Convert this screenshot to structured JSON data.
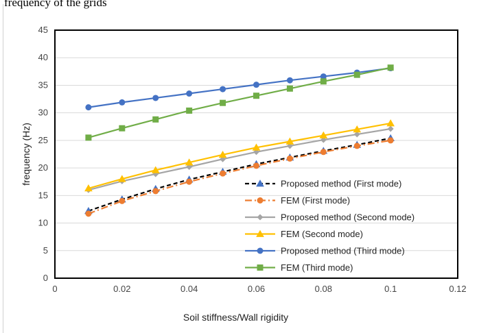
{
  "caption": "frequency of the grids",
  "chart_data": {
    "type": "line",
    "title": "",
    "xlabel": "Soil stiffness/Wall rigidity",
    "ylabel": "frequency (Hz)",
    "xlim": [
      0,
      0.12
    ],
    "ylim": [
      0,
      45
    ],
    "x_ticks": [
      "0",
      "0.02",
      "0.04",
      "0.06",
      "0.08",
      "0.1",
      "0.12"
    ],
    "y_ticks": [
      "0",
      "5",
      "10",
      "15",
      "20",
      "25",
      "30",
      "35",
      "40",
      "45"
    ],
    "grid": "horizontal",
    "legend_position": "inside-bottom-right",
    "x": [
      0.01,
      0.02,
      0.03,
      0.04,
      0.05,
      0.06,
      0.07,
      0.08,
      0.09,
      0.1
    ],
    "series": [
      {
        "name": "Proposed method (First mode)",
        "color": "#000000",
        "marker_color": "#4472c4",
        "marker": "triangle",
        "dash": "6,4",
        "values": [
          12.2,
          14.3,
          16.2,
          17.9,
          19.3,
          20.7,
          21.9,
          23.1,
          24.2,
          25.4
        ]
      },
      {
        "name": "FEM (First mode)",
        "color": "#ed7d31",
        "marker_color": "#ed7d31",
        "marker": "circle",
        "dash": "10,4,2,4",
        "values": [
          11.7,
          14.0,
          15.8,
          17.5,
          19.0,
          20.4,
          21.7,
          22.9,
          24.0,
          25.0
        ]
      },
      {
        "name": "Proposed method (Second mode)",
        "color": "#a5a5a5",
        "marker_color": "#a5a5a5",
        "marker": "diamond",
        "dash": "",
        "values": [
          16.0,
          17.6,
          18.9,
          20.2,
          21.6,
          22.9,
          24.0,
          25.1,
          26.1,
          27.1
        ]
      },
      {
        "name": "FEM (Second mode)",
        "color": "#ffc000",
        "marker_color": "#ffc000",
        "marker": "triangle",
        "dash": "",
        "values": [
          16.3,
          18.0,
          19.6,
          21.0,
          22.4,
          23.7,
          24.8,
          25.9,
          27.0,
          28.1
        ]
      },
      {
        "name": "Proposed method (Third mode)",
        "color": "#4472c4",
        "marker_color": "#4472c4",
        "marker": "circle",
        "dash": "",
        "values": [
          31.0,
          31.9,
          32.7,
          33.5,
          34.3,
          35.1,
          35.9,
          36.6,
          37.3,
          38.1
        ]
      },
      {
        "name": "FEM (Third mode)",
        "color": "#70ad47",
        "marker_color": "#70ad47",
        "marker": "square",
        "dash": "",
        "values": [
          25.5,
          27.2,
          28.8,
          30.4,
          31.8,
          33.1,
          34.4,
          35.7,
          36.9,
          38.2
        ]
      }
    ]
  }
}
